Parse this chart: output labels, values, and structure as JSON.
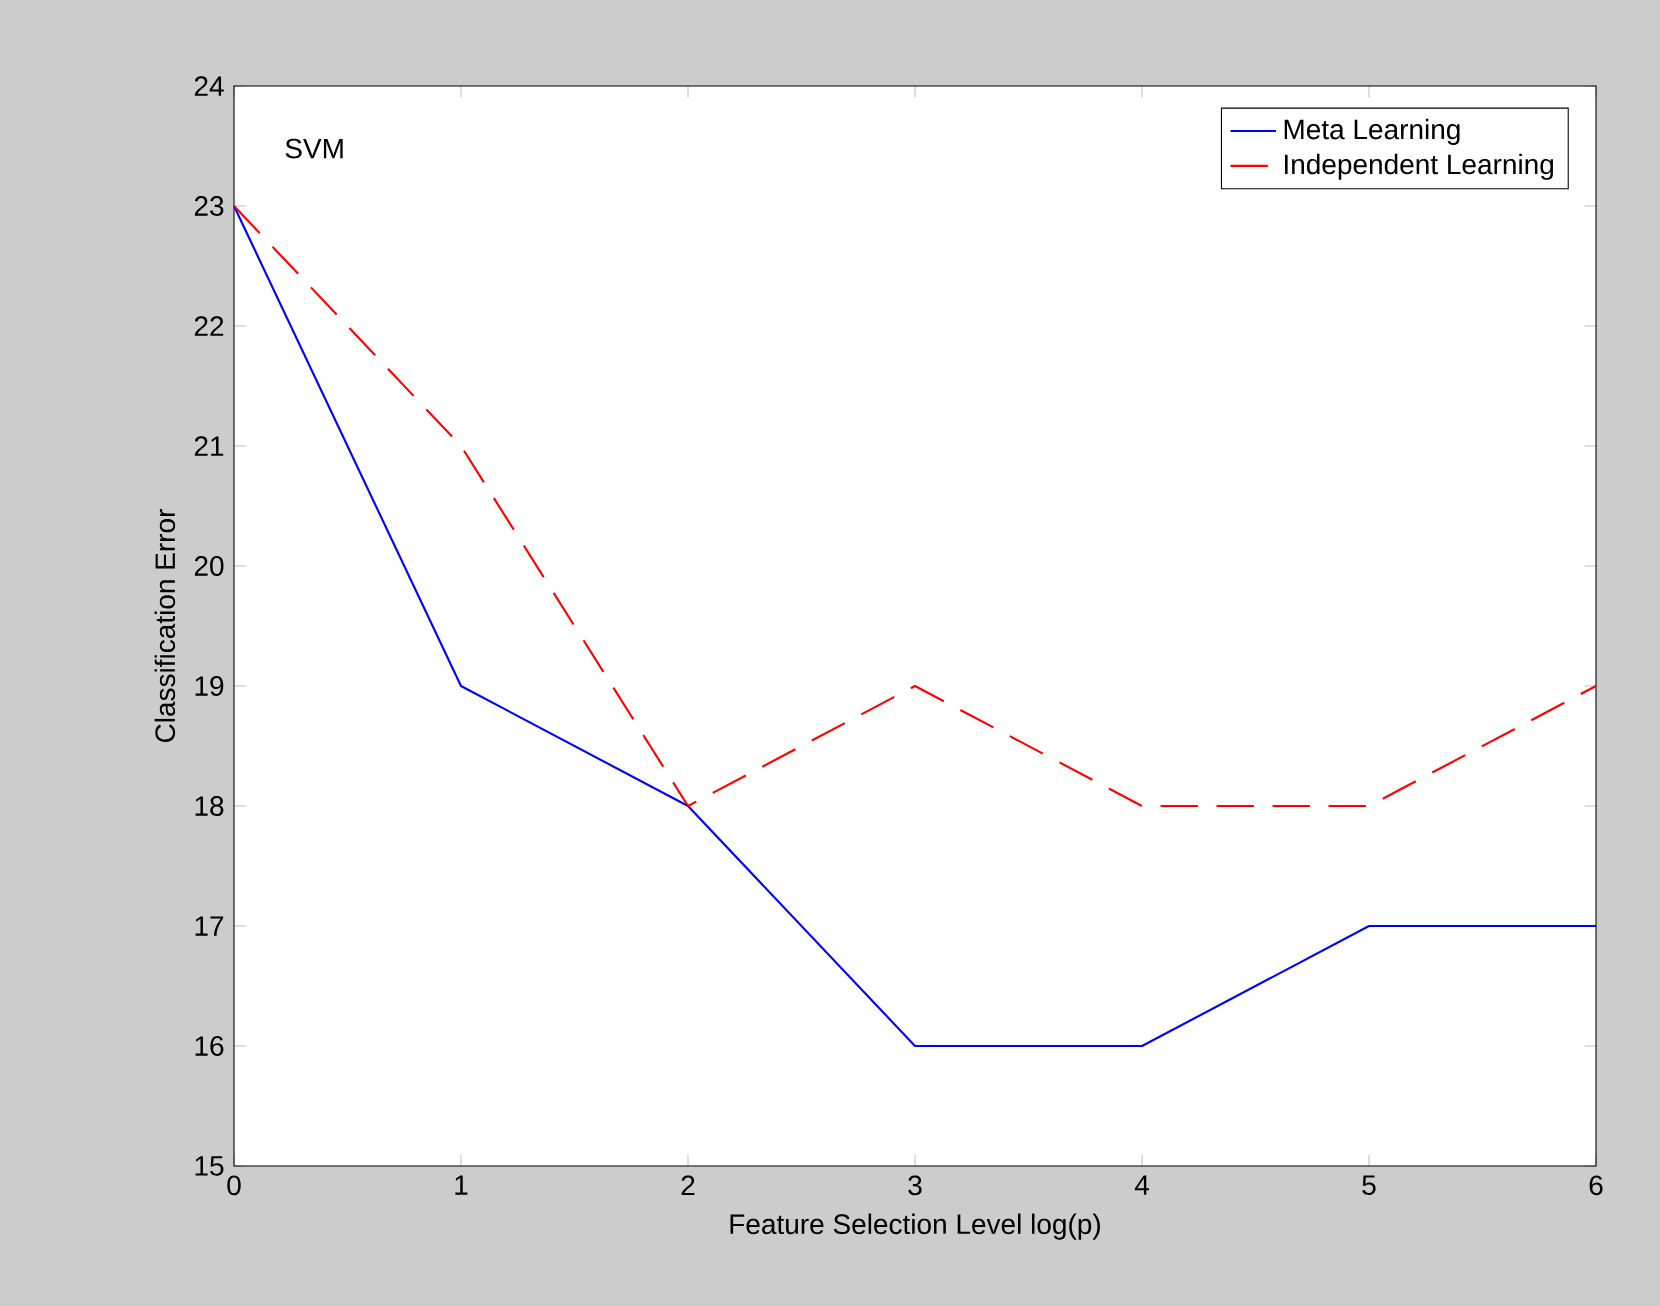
{
  "chart_data": {
    "type": "line",
    "xlabel": "Feature Selection Level log(p)",
    "ylabel": "Classification Error",
    "x": [
      0,
      1,
      2,
      3,
      4,
      5,
      6
    ],
    "series": [
      {
        "name": "Meta Learning",
        "color": "#0000ff",
        "line_style": "solid",
        "values": [
          23,
          19,
          18,
          16,
          16,
          17,
          17
        ]
      },
      {
        "name": "Independent Learning",
        "color": "#ff0000",
        "line_style": "dashed",
        "values": [
          23,
          21,
          18,
          19,
          18,
          18,
          19
        ]
      }
    ],
    "xlim": [
      0,
      6
    ],
    "ylim": [
      15,
      24
    ],
    "xticks": [
      0,
      1,
      2,
      3,
      4,
      5,
      6
    ],
    "yticks": [
      15,
      16,
      17,
      18,
      19,
      20,
      21,
      22,
      23,
      24
    ],
    "grid": false,
    "legend": "top right",
    "marker": "none",
    "annotations": [
      "SVM"
    ]
  }
}
